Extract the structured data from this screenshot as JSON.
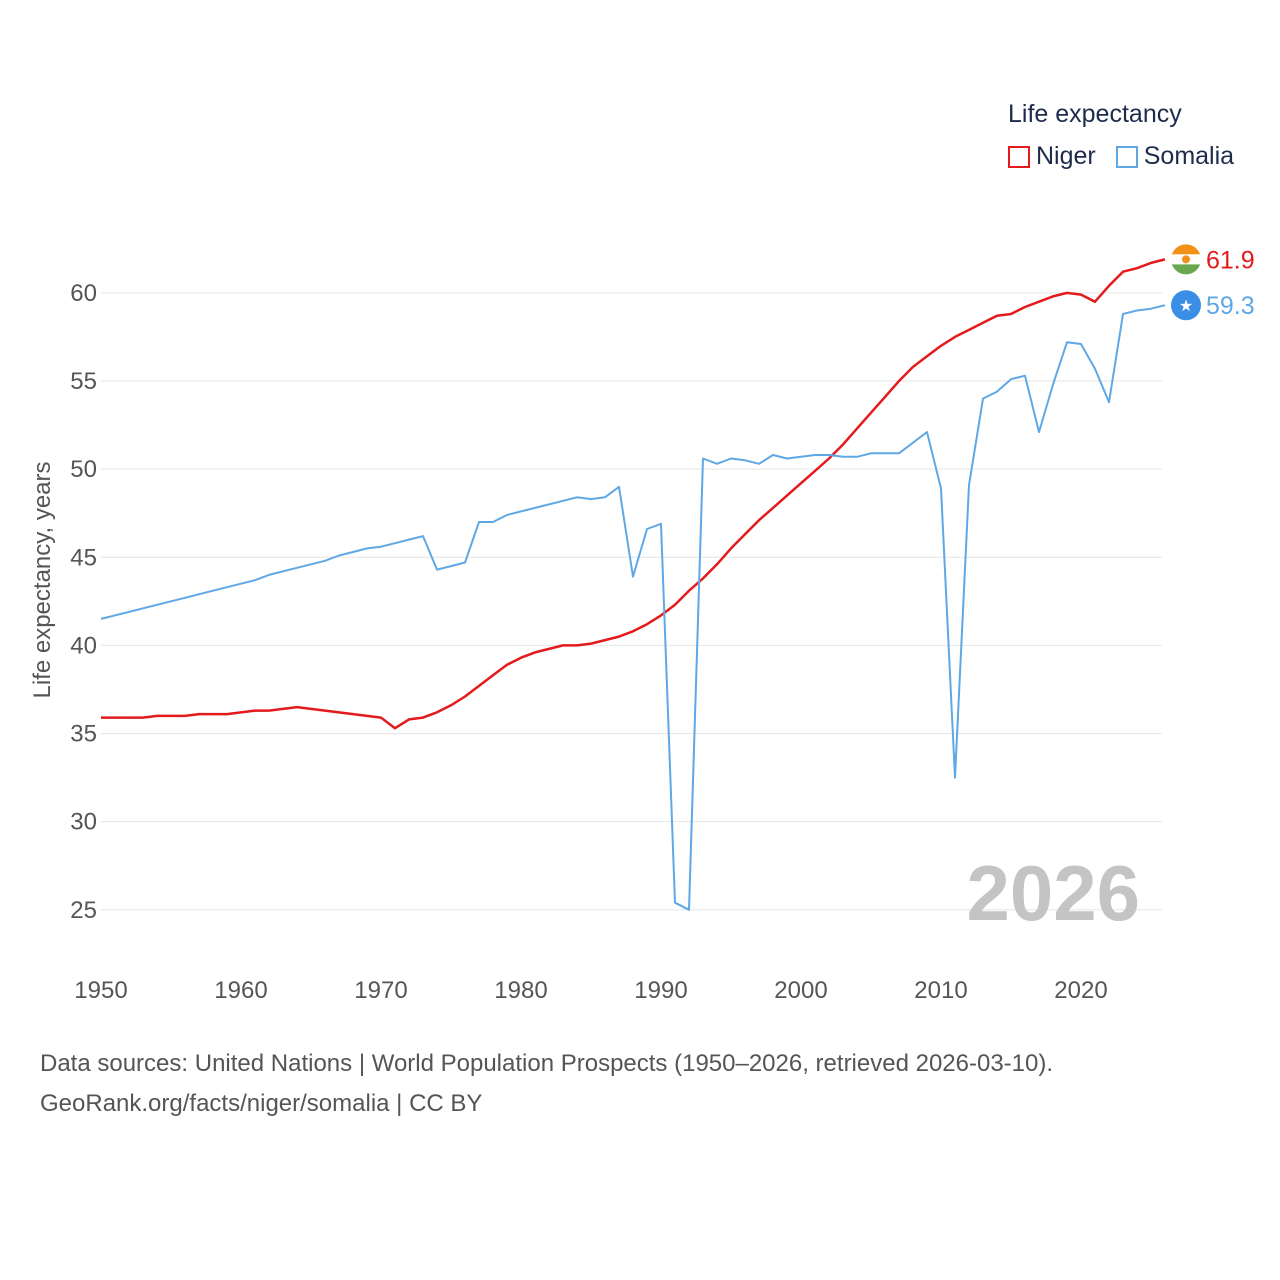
{
  "chart_data": {
    "type": "line",
    "title": "",
    "legend_title": "Life expectancy",
    "ylabel": "Life expectancy, years",
    "xlabel": "",
    "xlim": [
      1950,
      2026
    ],
    "ylim": [
      23,
      63
    ],
    "x_ticks": [
      1950,
      1960,
      1970,
      1980,
      1990,
      2000,
      2010,
      2020
    ],
    "y_ticks": [
      25,
      30,
      35,
      40,
      45,
      50,
      55,
      60
    ],
    "year_watermark": "2026",
    "series": [
      {
        "name": "Niger",
        "color": "#e41a1c",
        "end_label": "61.9",
        "flag": "niger-flag",
        "x": [
          1950,
          1953,
          1954,
          1956,
          1957,
          1959,
          1961,
          1962,
          1964,
          1966,
          1968,
          1970,
          1971,
          1972,
          1973,
          1974,
          1975,
          1976,
          1977,
          1978,
          1979,
          1980,
          1981,
          1982,
          1983,
          1984,
          1985,
          1986,
          1987,
          1988,
          1989,
          1990,
          1991,
          1992,
          1993,
          1994,
          1995,
          1996,
          1997,
          1998,
          1999,
          2000,
          2001,
          2002,
          2003,
          2004,
          2005,
          2006,
          2007,
          2008,
          2009,
          2010,
          2011,
          2012,
          2013,
          2014,
          2015,
          2016,
          2017,
          2018,
          2019,
          2020,
          2021,
          2022,
          2023,
          2024,
          2025,
          2026
        ],
        "y": [
          35.9,
          35.9,
          36.0,
          36.0,
          36.1,
          36.1,
          36.3,
          36.3,
          36.5,
          36.3,
          36.1,
          35.9,
          35.3,
          35.8,
          35.9,
          36.2,
          36.6,
          37.1,
          37.7,
          38.3,
          38.9,
          39.3,
          39.6,
          39.8,
          40.0,
          40.0,
          40.1,
          40.3,
          40.5,
          40.8,
          41.2,
          41.7,
          42.3,
          43.1,
          43.8,
          44.6,
          45.5,
          46.3,
          47.1,
          47.8,
          48.5,
          49.2,
          49.9,
          50.6,
          51.4,
          52.3,
          53.2,
          54.1,
          55.0,
          55.8,
          56.4,
          57.0,
          57.5,
          57.9,
          58.3,
          58.7,
          58.8,
          59.2,
          59.5,
          59.8,
          60.0,
          59.9,
          59.5,
          60.4,
          61.2,
          61.4,
          61.7,
          61.9
        ]
      },
      {
        "name": "Somalia",
        "color": "#5fa8e6",
        "end_label": "59.3",
        "flag": "somalia-flag",
        "x": [
          1950,
          1952,
          1954,
          1956,
          1958,
          1960,
          1961,
          1962,
          1964,
          1966,
          1967,
          1968,
          1969,
          1970,
          1971,
          1972,
          1973,
          1974,
          1975,
          1976,
          1977,
          1978,
          1979,
          1980,
          1981,
          1982,
          1983,
          1984,
          1985,
          1986,
          1987,
          1988,
          1989,
          1990,
          1991,
          1992,
          1993,
          1994,
          1995,
          1996,
          1997,
          1998,
          1999,
          2000,
          2001,
          2002,
          2003,
          2004,
          2005,
          2006,
          2007,
          2008,
          2009,
          2010,
          2011,
          2012,
          2013,
          2014,
          2015,
          2016,
          2017,
          2018,
          2019,
          2020,
          2021,
          2022,
          2023,
          2024,
          2025,
          2026
        ],
        "y": [
          41.5,
          41.9,
          42.3,
          42.7,
          43.1,
          43.5,
          43.7,
          44.0,
          44.4,
          44.8,
          45.1,
          45.3,
          45.5,
          45.6,
          45.8,
          46.0,
          46.2,
          44.3,
          44.5,
          44.7,
          47.0,
          47.0,
          47.4,
          47.6,
          47.8,
          48.0,
          48.2,
          48.4,
          48.3,
          48.4,
          49.0,
          43.9,
          46.6,
          46.9,
          25.4,
          25.0,
          50.6,
          50.3,
          50.6,
          50.5,
          50.3,
          50.8,
          50.6,
          50.7,
          50.8,
          50.8,
          50.7,
          50.7,
          50.9,
          50.9,
          50.9,
          51.5,
          52.1,
          48.9,
          32.5,
          49.1,
          54.0,
          54.4,
          55.1,
          55.3,
          52.1,
          54.8,
          57.2,
          57.1,
          55.7,
          53.8,
          58.8,
          59.0,
          59.1,
          59.3
        ]
      }
    ]
  },
  "source": {
    "line1": "Data sources: United Nations | World Population Prospects (1950–2026, retrieved 2026-03-10).",
    "line2": "GeoRank.org/facts/niger/somalia | CC BY"
  }
}
